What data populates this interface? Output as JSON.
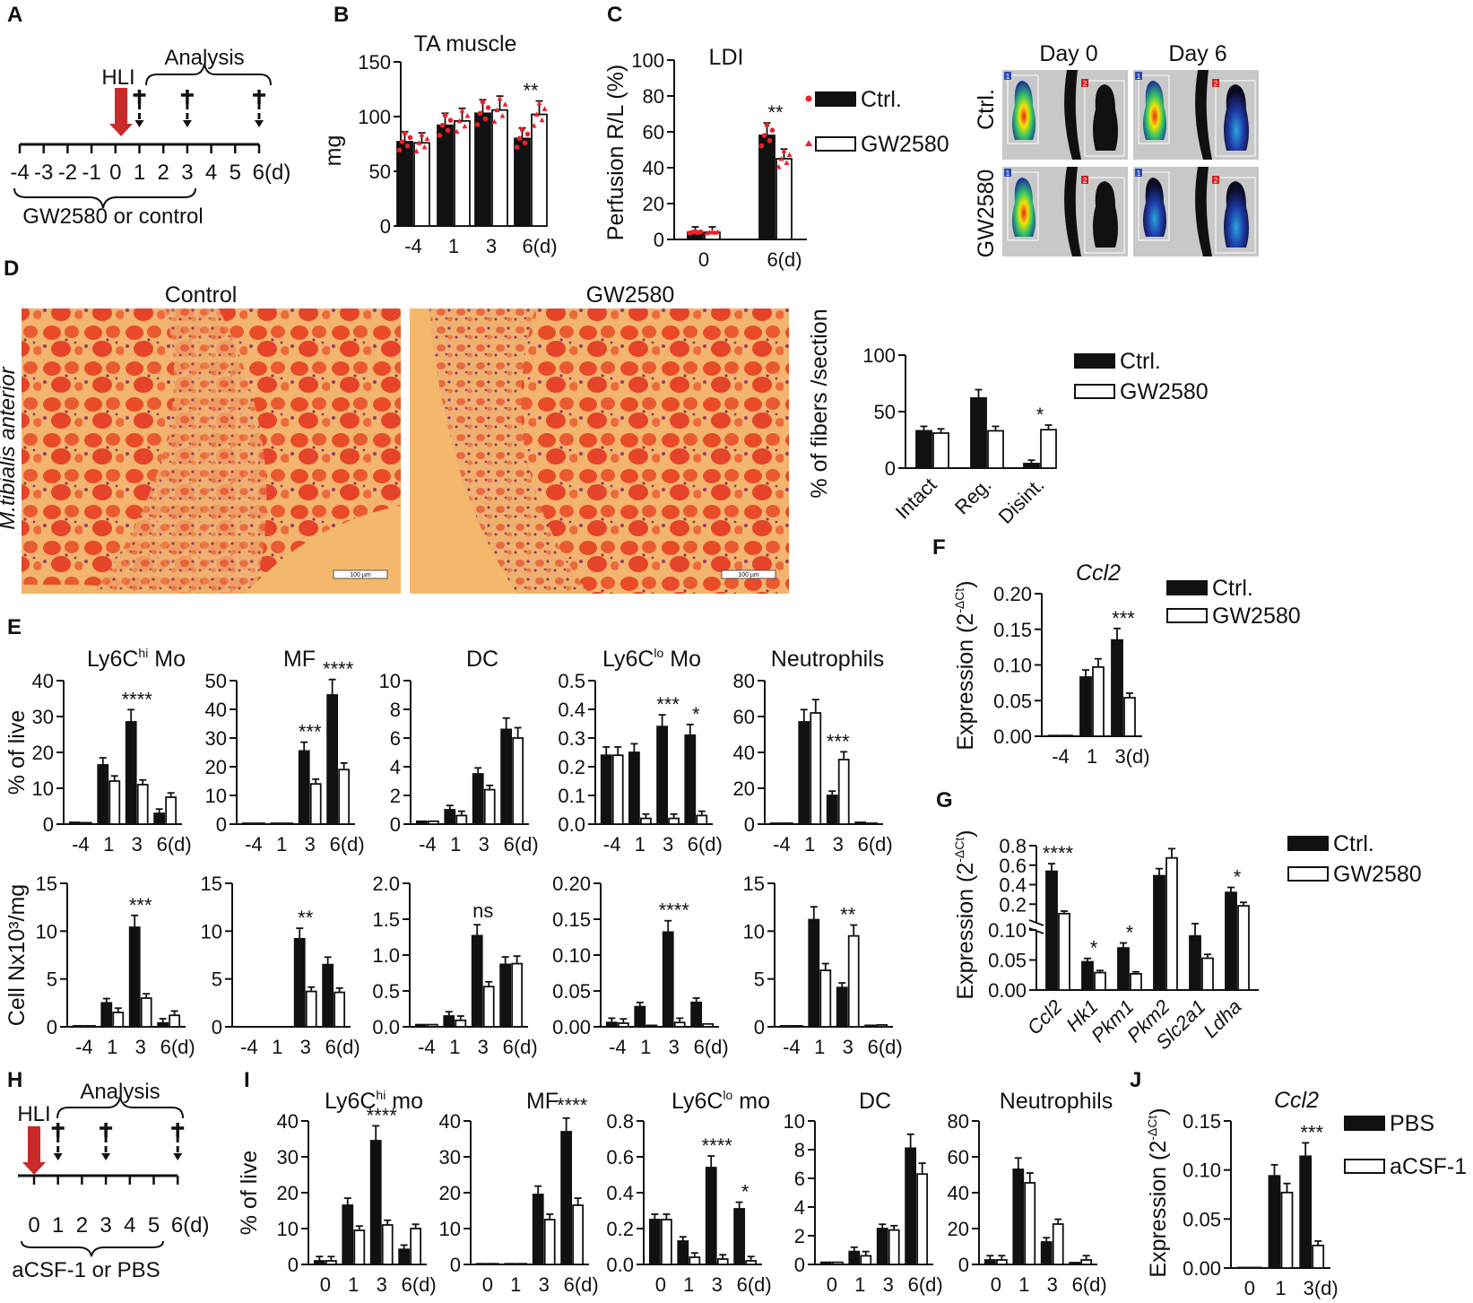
{
  "panels": {
    "A": "A",
    "B": "B",
    "C": "C",
    "D": "D",
    "E": "E",
    "F": "F",
    "G": "G",
    "H": "H",
    "I": "I",
    "J": "J"
  },
  "colors": {
    "ctrl": "#111111",
    "treat": "#ffffff",
    "dots": "#e8222d",
    "arrow": "#c92a2a",
    "tissue": "#f2b46e",
    "fiber": "#e8402a"
  },
  "timelineA": {
    "event": "HLI",
    "analysis": "Analysis",
    "ticks": [
      "-4",
      "-3",
      "-2",
      "-1",
      "0",
      "1",
      "2",
      "3",
      "4",
      "5",
      "6(d)"
    ],
    "treatment": "GW2580 or control",
    "dagger": "†"
  },
  "timelineH": {
    "event": "HLI",
    "analysis": "Analysis",
    "ticks": [
      "0",
      "1",
      "2",
      "3",
      "4",
      "5",
      "6(d)"
    ],
    "treatment": "aCSF-1 or PBS",
    "dagger": "†"
  },
  "imagesC": {
    "day0": "Day 0",
    "day6": "Day 6",
    "rowCtrl": "Ctrl.",
    "rowGW": "GW2580",
    "roi1": "1",
    "roi2": "2"
  },
  "imagesD": {
    "control": "Control",
    "gw": "GW2580",
    "tissueLabel": "M.tibialis anterior",
    "scale": "100 µm"
  },
  "legendGW": {
    "ctrl": "Ctrl.",
    "treat": "GW2580"
  },
  "legendJ": {
    "ctrl": "PBS",
    "treat": "aCSF-1"
  },
  "chart_data": [
    {
      "id": "B",
      "type": "bar",
      "title": "TA muscle",
      "ylabel": "mg",
      "categories": [
        "-4",
        "1",
        "3",
        "6(d)"
      ],
      "ylim": [
        0,
        150
      ],
      "yticks": [
        "0",
        "50",
        "100",
        "150"
      ],
      "series": [
        {
          "name": "Ctrl.",
          "values": [
            77,
            92,
            103,
            80
          ]
        },
        {
          "name": "GW2580",
          "values": [
            76,
            96,
            106,
            102
          ]
        }
      ],
      "annotations": [
        "",
        "",
        "",
        "**"
      ]
    },
    {
      "id": "C",
      "type": "bar",
      "title": "LDI",
      "ylabel": "Perfusion R/L (%)",
      "categories": [
        "0",
        "6(d)"
      ],
      "ylim": [
        0,
        100
      ],
      "yticks": [
        "0",
        "20",
        "40",
        "60",
        "80",
        "100"
      ],
      "series": [
        {
          "name": "Ctrl.",
          "values": [
            4,
            58
          ]
        },
        {
          "name": "GW2580",
          "values": [
            4,
            45
          ]
        }
      ],
      "annotations": [
        "",
        "**"
      ]
    },
    {
      "id": "D",
      "type": "bar",
      "title": "",
      "ylabel": "% of fibers /section",
      "categories": [
        "Intact",
        "Reg.",
        "Disint."
      ],
      "ylim": [
        0,
        100
      ],
      "yticks": [
        "0",
        "50",
        "100"
      ],
      "series": [
        {
          "name": "Ctrl.",
          "values": [
            33,
            62,
            4
          ]
        },
        {
          "name": "GW2580",
          "values": [
            31,
            33,
            34
          ]
        }
      ],
      "annotations": [
        "",
        "",
        "*"
      ]
    },
    {
      "id": "E1",
      "type": "bar",
      "title": "Ly6C",
      "sup": "hi",
      "titleTail": " Mo",
      "ylabel": "% of live",
      "categories": [
        "-4",
        "1",
        "3",
        "6(d)"
      ],
      "ylim": [
        0,
        40
      ],
      "yticks": [
        "0",
        "10",
        "20",
        "30",
        "40"
      ],
      "series": [
        {
          "values": [
            0.5,
            16.5,
            28.5,
            3
          ]
        },
        {
          "values": [
            0.4,
            12,
            11,
            7.5
          ]
        }
      ],
      "annotations": [
        "",
        "",
        "****",
        ""
      ]
    },
    {
      "id": "E2",
      "type": "bar",
      "title": "MF",
      "ylabel": "",
      "categories": [
        "-4",
        "1",
        "3",
        "6(d)"
      ],
      "ylim": [
        0,
        50
      ],
      "yticks": [
        "0",
        "10",
        "20",
        "30",
        "40",
        "50"
      ],
      "series": [
        {
          "values": [
            0.3,
            0.3,
            25.5,
            45
          ]
        },
        {
          "values": [
            0.3,
            0.3,
            14,
            19
          ]
        }
      ],
      "annotations": [
        "",
        "",
        "***",
        "****"
      ]
    },
    {
      "id": "E3",
      "type": "bar",
      "title": "DC",
      "ylabel": "",
      "categories": [
        "-4",
        "1",
        "3",
        "6(d)"
      ],
      "ylim": [
        0,
        10
      ],
      "yticks": [
        "0",
        "2",
        "4",
        "6",
        "8",
        "10"
      ],
      "series": [
        {
          "values": [
            0.2,
            1,
            3.5,
            6.6
          ]
        },
        {
          "values": [
            0.2,
            0.6,
            2.4,
            6
          ]
        }
      ],
      "annotations": [
        "",
        "",
        "",
        ""
      ]
    },
    {
      "id": "E4",
      "type": "bar",
      "title": "Ly6C",
      "sup": "lo",
      "titleTail": " Mo",
      "ylabel": "",
      "categories": [
        "-4",
        "1",
        "3",
        "6(d)"
      ],
      "ylim": [
        0,
        0.5
      ],
      "yticks": [
        "0.0",
        "0.1",
        "0.2",
        "0.3",
        "0.4",
        "0.5"
      ],
      "series": [
        {
          "values": [
            0.24,
            0.25,
            0.34,
            0.31
          ]
        },
        {
          "values": [
            0.24,
            0.02,
            0.02,
            0.03
          ]
        }
      ],
      "annotations": [
        "",
        "",
        "***",
        "*"
      ]
    },
    {
      "id": "E5",
      "type": "bar",
      "title": "Neutrophils",
      "ylabel": "",
      "categories": [
        "-4",
        "1",
        "3",
        "6(d)"
      ],
      "ylim": [
        0,
        80
      ],
      "yticks": [
        "0",
        "20",
        "40",
        "60",
        "80"
      ],
      "series": [
        {
          "values": [
            0.5,
            57,
            16,
            1
          ]
        },
        {
          "values": [
            0.5,
            62,
            36,
            0.5
          ]
        }
      ],
      "annotations": [
        "",
        "",
        "***",
        ""
      ]
    },
    {
      "id": "E6",
      "type": "bar",
      "title": "",
      "ylabel": "Cell Nx10³/mg",
      "categories": [
        "-4",
        "1",
        "3",
        "6(d)"
      ],
      "ylim": [
        0,
        15
      ],
      "yticks": [
        "0",
        "5",
        "10",
        "15"
      ],
      "series": [
        {
          "values": [
            0.1,
            2.5,
            10.4,
            0.4
          ]
        },
        {
          "values": [
            0.1,
            1.5,
            3,
            1.2
          ]
        }
      ],
      "annotations": [
        "",
        "",
        "***",
        ""
      ]
    },
    {
      "id": "E7",
      "type": "bar",
      "title": "",
      "ylabel": "",
      "categories": [
        "-4",
        "1",
        "3",
        "6(d)"
      ],
      "ylim": [
        0,
        15
      ],
      "yticks": [
        "0",
        "5",
        "10",
        "15"
      ],
      "series": [
        {
          "values": [
            0,
            0,
            9.2,
            6.5
          ]
        },
        {
          "values": [
            0,
            0,
            3.7,
            3.6
          ]
        }
      ],
      "annotations": [
        "",
        "",
        "**",
        ""
      ]
    },
    {
      "id": "E8",
      "type": "bar",
      "title": "",
      "ylabel": "",
      "categories": [
        "-4",
        "1",
        "3",
        "6(d)"
      ],
      "ylim": [
        0,
        2
      ],
      "yticks": [
        "0.0",
        "0.5",
        "1.0",
        "1.5",
        "2.0"
      ],
      "series": [
        {
          "values": [
            0.03,
            0.15,
            1.27,
            0.87
          ]
        },
        {
          "values": [
            0.03,
            0.09,
            0.56,
            0.88
          ]
        }
      ],
      "annotations": [
        "",
        "",
        "ns",
        ""
      ]
    },
    {
      "id": "E9",
      "type": "bar",
      "title": "",
      "ylabel": "",
      "categories": [
        "-4",
        "1",
        "3",
        "6(d)"
      ],
      "ylim": [
        0,
        0.2
      ],
      "yticks": [
        "0.00",
        "0.05",
        "0.10",
        "0.15",
        "0.20"
      ],
      "series": [
        {
          "values": [
            0.006,
            0.028,
            0.132,
            0.034
          ]
        },
        {
          "values": [
            0.005,
            0.002,
            0.006,
            0.004
          ]
        }
      ],
      "annotations": [
        "",
        "",
        "****",
        ""
      ]
    },
    {
      "id": "E10",
      "type": "bar",
      "title": "",
      "ylabel": "",
      "categories": [
        "-4",
        "1",
        "3",
        "6(d)"
      ],
      "ylim": [
        0,
        15
      ],
      "yticks": [
        "0",
        "5",
        "10",
        "15"
      ],
      "series": [
        {
          "values": [
            0.1,
            11.2,
            4.1,
            0.15
          ]
        },
        {
          "values": [
            0.1,
            5.9,
            9.5,
            0.2
          ]
        }
      ],
      "annotations": [
        "",
        "",
        "**",
        ""
      ]
    },
    {
      "id": "F",
      "type": "bar",
      "title": "Ccl2",
      "ylabel": "Expression (2",
      "ylabelSup": "-ΔCt",
      "ylabelTail": ")",
      "categories": [
        "-4",
        "1",
        "3(d)"
      ],
      "ylim": [
        0,
        0.2
      ],
      "yticks": [
        "0.00",
        "0.05",
        "0.10",
        "0.15",
        "0.20"
      ],
      "series": [
        {
          "name": "Ctrl.",
          "values": [
            0.001,
            0.083,
            0.135
          ]
        },
        {
          "name": "GW2580",
          "values": [
            0.001,
            0.097,
            0.054
          ]
        }
      ],
      "annotations": [
        "",
        "",
        "***"
      ]
    },
    {
      "id": "G",
      "type": "bar",
      "title": "",
      "ylabel": "Expression (2",
      "ylabelSup": "-ΔCt",
      "ylabelTail": ")",
      "broken": true,
      "lowerLim": [
        0,
        0.1
      ],
      "upperLim": [
        0.1,
        0.8
      ],
      "lowerTicks": [
        "0.00",
        "0.05",
        "0.10"
      ],
      "upperTicks": [
        "0.2",
        "0.4",
        "0.6",
        "0.8"
      ],
      "categories": [
        "Ccl2",
        "Hk1",
        "Pkm1",
        "Pkm2",
        "Slc2a1",
        "Ldha"
      ],
      "series": [
        {
          "name": "Ctrl.",
          "values": [
            0.57,
            0.047,
            0.07,
            0.53,
            0.09,
            0.38
          ]
        },
        {
          "name": "GW2580",
          "values": [
            0.19,
            0.029,
            0.027,
            0.69,
            0.053,
            0.26
          ]
        }
      ],
      "annotations": [
        "****",
        "*",
        "*",
        "",
        "",
        "*"
      ]
    },
    {
      "id": "I1",
      "type": "bar",
      "title": "Ly6C",
      "sup": "hi",
      "titleTail": " mo",
      "ylabel": "% of live",
      "categories": [
        "0",
        "1",
        "3",
        "6(d)"
      ],
      "ylim": [
        0,
        40
      ],
      "yticks": [
        "0",
        "10",
        "20",
        "30",
        "40"
      ],
      "series": [
        {
          "values": [
            1,
            16.5,
            34.5,
            4.2
          ]
        },
        {
          "values": [
            1,
            9.5,
            11,
            10
          ]
        }
      ],
      "annotations": [
        "",
        "",
        "****",
        ""
      ]
    },
    {
      "id": "I2",
      "type": "bar",
      "title": "MF",
      "ylabel": "",
      "categories": [
        "0",
        "1",
        "3",
        "6(d)"
      ],
      "ylim": [
        0,
        40
      ],
      "yticks": [
        "0",
        "10",
        "20",
        "30",
        "40"
      ],
      "series": [
        {
          "values": [
            0.2,
            0.2,
            19.5,
            37
          ]
        },
        {
          "values": [
            0.2,
            0.2,
            12.5,
            16.5
          ]
        }
      ],
      "annotations": [
        "",
        "",
        "",
        "****"
      ]
    },
    {
      "id": "I3",
      "type": "bar",
      "title": "Ly6C",
      "sup": "lo",
      "titleTail": " mo",
      "ylabel": "",
      "categories": [
        "0",
        "1",
        "3",
        "6(d)"
      ],
      "ylim": [
        0,
        0.8
      ],
      "yticks": [
        "0.0",
        "0.2",
        "0.4",
        "0.6",
        "0.8"
      ],
      "series": [
        {
          "values": [
            0.25,
            0.13,
            0.54,
            0.31
          ]
        },
        {
          "values": [
            0.25,
            0.04,
            0.03,
            0.02
          ]
        }
      ],
      "annotations": [
        "",
        "",
        "****",
        "*"
      ]
    },
    {
      "id": "I4",
      "type": "bar",
      "title": "DC",
      "ylabel": "",
      "categories": [
        "0",
        "1",
        "3",
        "6(d)"
      ],
      "ylim": [
        0,
        10
      ],
      "yticks": [
        "0",
        "2",
        "4",
        "6",
        "8",
        "10"
      ],
      "series": [
        {
          "values": [
            0.15,
            0.9,
            2.5,
            8.1
          ]
        },
        {
          "values": [
            0.15,
            0.6,
            2.4,
            6.3
          ]
        }
      ],
      "annotations": [
        "",
        "",
        "",
        ""
      ]
    },
    {
      "id": "I5",
      "type": "bar",
      "title": "Neutrophils",
      "ylabel": "",
      "categories": [
        "0",
        "1",
        "3",
        "6(d)"
      ],
      "ylim": [
        0,
        80
      ],
      "yticks": [
        "0",
        "20",
        "40",
        "60",
        "80"
      ],
      "series": [
        {
          "values": [
            2.5,
            53,
            12.5,
            1
          ]
        },
        {
          "values": [
            2.5,
            45.5,
            22.5,
            2.5
          ]
        }
      ],
      "annotations": [
        "",
        "",
        "",
        ""
      ]
    },
    {
      "id": "J",
      "type": "bar",
      "title": "Ccl2",
      "ylabel": "Expression (2",
      "ylabelSup": "-ΔCt",
      "ylabelTail": ")",
      "categories": [
        "0",
        "1",
        "3(d)"
      ],
      "ylim": [
        0,
        0.15
      ],
      "yticks": [
        "0.00",
        "0.05",
        "0.10",
        "0.15"
      ],
      "series": [
        {
          "name": "PBS",
          "values": [
            0.0005,
            0.094,
            0.114
          ]
        },
        {
          "name": "aCSF-1",
          "values": [
            0.0005,
            0.077,
            0.023
          ]
        }
      ],
      "annotations": [
        "",
        "",
        "***"
      ]
    }
  ]
}
